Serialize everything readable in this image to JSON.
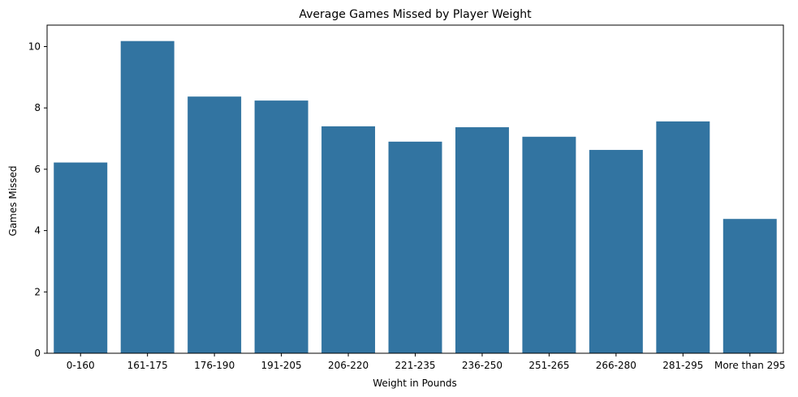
{
  "chart_data": {
    "type": "bar",
    "title": "Average Games Missed by Player Weight",
    "xlabel": "Weight in Pounds",
    "ylabel": "Games Missed",
    "categories": [
      "0-160",
      "161-175",
      "176-190",
      "191-205",
      "206-220",
      "221-235",
      "236-250",
      "251-265",
      "266-280",
      "281-295",
      "More than 295"
    ],
    "values": [
      6.22,
      10.18,
      8.37,
      8.24,
      7.4,
      6.9,
      7.37,
      7.06,
      6.63,
      7.56,
      4.38
    ],
    "yticks": [
      0,
      2,
      4,
      6,
      8,
      10
    ],
    "ylim": [
      0,
      10.7
    ],
    "grid": false,
    "bar_color": "#3274a1"
  }
}
